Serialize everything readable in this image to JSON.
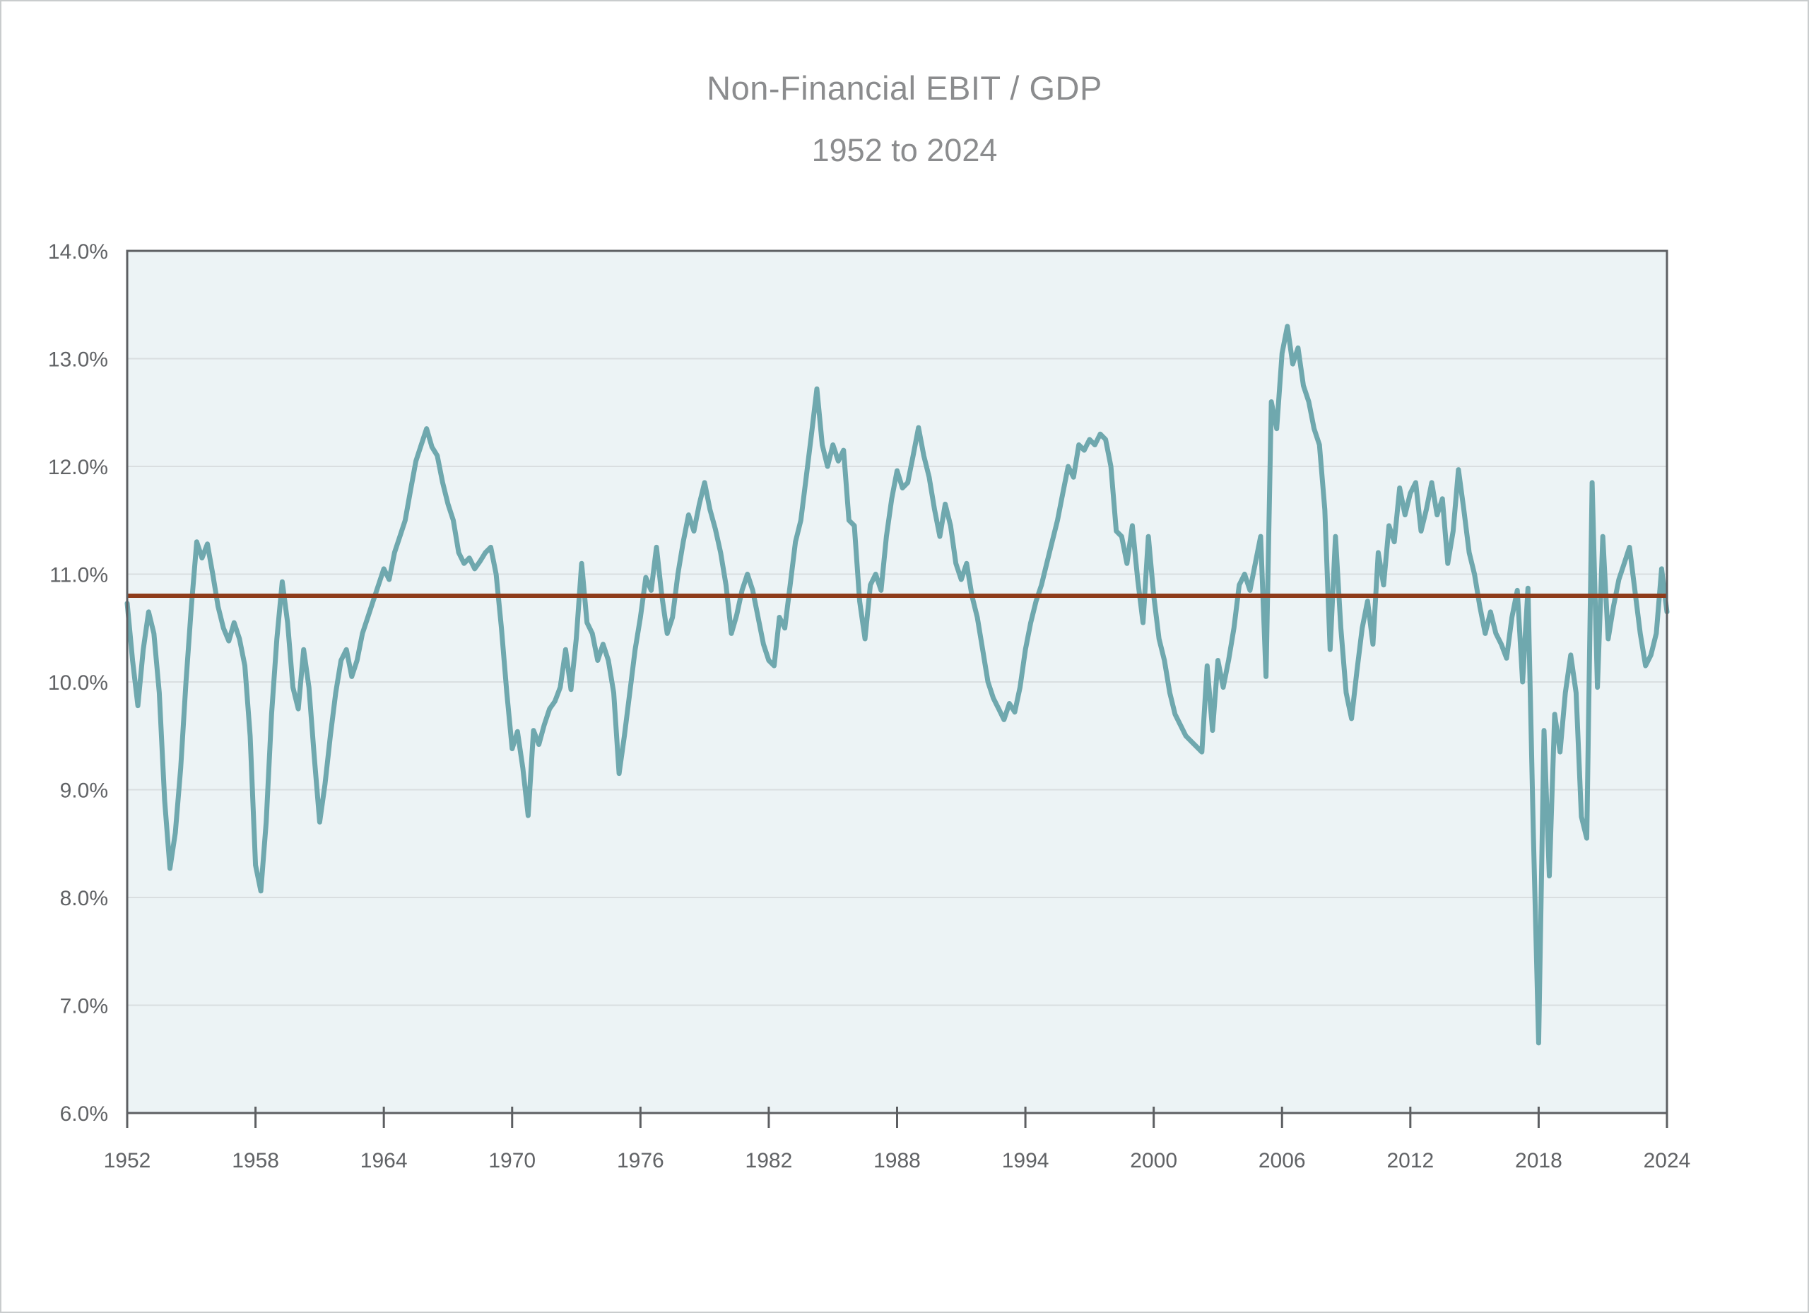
{
  "chart_data": {
    "type": "line",
    "title": "Non-Financial EBIT / GDP",
    "subtitle": "1952 to 2024",
    "xlabel": "",
    "ylabel": "",
    "xlim": [
      1952,
      2024
    ],
    "ylim": [
      6,
      14
    ],
    "grid": true,
    "legend_position": "none",
    "plot_bg_color": "#ECF3F5",
    "grid_color": "#d9dee0",
    "frame_color": "#5d5f62",
    "label_color": "#616366",
    "title_color": "#8b8c8e",
    "y_ticks": [
      {
        "value": 6,
        "label": "6.0%"
      },
      {
        "value": 7,
        "label": "7.0%"
      },
      {
        "value": 8,
        "label": "8.0%"
      },
      {
        "value": 9,
        "label": "9.0%"
      },
      {
        "value": 10,
        "label": "10.0%"
      },
      {
        "value": 11,
        "label": "11.0%"
      },
      {
        "value": 12,
        "label": "12.0%"
      },
      {
        "value": 13,
        "label": "13.0%"
      },
      {
        "value": 14,
        "label": "14.0%"
      }
    ],
    "x_ticks": [
      {
        "value": 1952,
        "label": "1952"
      },
      {
        "value": 1958,
        "label": "1958"
      },
      {
        "value": 1964,
        "label": "1964"
      },
      {
        "value": 1970,
        "label": "1970"
      },
      {
        "value": 1976,
        "label": "1976"
      },
      {
        "value": 1982,
        "label": "1982"
      },
      {
        "value": 1988,
        "label": "1988"
      },
      {
        "value": 1994,
        "label": "1994"
      },
      {
        "value": 2000,
        "label": "2000"
      },
      {
        "value": 2006,
        "label": "2006"
      },
      {
        "value": 2012,
        "label": "2012"
      },
      {
        "value": 2018,
        "label": "2018"
      },
      {
        "value": 2024,
        "label": "2024"
      }
    ],
    "reference_line": {
      "value": 10.8,
      "color": "#8E3B1A"
    },
    "series": [
      {
        "name": "Non-Financial EBIT / GDP",
        "color": "#6FA8AE",
        "x_start": 1952.0,
        "x_step": 0.25,
        "values": [
          10.73,
          10.2,
          9.78,
          10.3,
          10.65,
          10.45,
          9.9,
          8.9,
          8.27,
          8.6,
          9.2,
          10.0,
          10.7,
          11.3,
          11.15,
          11.28,
          11.0,
          10.7,
          10.5,
          10.38,
          10.55,
          10.4,
          10.15,
          9.5,
          8.3,
          8.06,
          8.7,
          9.7,
          10.4,
          10.93,
          10.55,
          9.95,
          9.75,
          10.3,
          9.95,
          9.3,
          8.7,
          9.05,
          9.5,
          9.9,
          10.2,
          10.3,
          10.05,
          10.2,
          10.45,
          10.6,
          10.75,
          10.9,
          11.05,
          10.95,
          11.2,
          11.35,
          11.5,
          11.78,
          12.05,
          12.2,
          12.35,
          12.18,
          12.1,
          11.85,
          11.65,
          11.5,
          11.2,
          11.1,
          11.15,
          11.05,
          11.12,
          11.2,
          11.25,
          11.0,
          10.5,
          9.9,
          9.38,
          9.54,
          9.2,
          8.76,
          9.55,
          9.42,
          9.6,
          9.75,
          9.82,
          9.95,
          10.3,
          9.93,
          10.4,
          11.1,
          10.55,
          10.45,
          10.2,
          10.35,
          10.2,
          9.9,
          9.15,
          9.5,
          9.9,
          10.3,
          10.6,
          10.97,
          10.85,
          11.25,
          10.8,
          10.45,
          10.6,
          11.0,
          11.3,
          11.55,
          11.4,
          11.65,
          11.85,
          11.6,
          11.42,
          11.2,
          10.9,
          10.45,
          10.62,
          10.85,
          11.0,
          10.85,
          10.6,
          10.35,
          10.2,
          10.15,
          10.6,
          10.5,
          10.9,
          11.3,
          11.5,
          11.9,
          12.3,
          12.72,
          12.2,
          12.0,
          12.2,
          12.05,
          12.15,
          11.5,
          11.45,
          10.75,
          10.4,
          10.9,
          11.0,
          10.85,
          11.35,
          11.7,
          11.96,
          11.8,
          11.85,
          12.1,
          12.36,
          12.1,
          11.9,
          11.6,
          11.35,
          11.65,
          11.45,
          11.1,
          10.95,
          11.1,
          10.8,
          10.6,
          10.3,
          10.0,
          9.85,
          9.75,
          9.65,
          9.8,
          9.72,
          9.95,
          10.3,
          10.55,
          10.75,
          10.9,
          11.1,
          11.3,
          11.5,
          11.75,
          12.0,
          11.9,
          12.2,
          12.15,
          12.25,
          12.2,
          12.3,
          12.25,
          12.0,
          11.4,
          11.35,
          11.1,
          11.45,
          10.95,
          10.55,
          11.35,
          10.8,
          10.4,
          10.2,
          9.9,
          9.7,
          9.6,
          9.5,
          9.45,
          9.4,
          9.35,
          10.15,
          9.55,
          10.2,
          9.95,
          10.2,
          10.5,
          10.9,
          11.0,
          10.85,
          11.1,
          11.35,
          10.05,
          12.6,
          12.35,
          13.05,
          13.3,
          12.95,
          13.1,
          12.75,
          12.6,
          12.35,
          12.2,
          11.6,
          10.3,
          11.35,
          10.5,
          9.9,
          9.66,
          10.1,
          10.5,
          10.75,
          10.35,
          11.2,
          10.9,
          11.45,
          11.3,
          11.8,
          11.55,
          11.75,
          11.85,
          11.4,
          11.6,
          11.85,
          11.55,
          11.7,
          11.1,
          11.4,
          11.97,
          11.6,
          11.2,
          11.0,
          10.7,
          10.45,
          10.65,
          10.45,
          10.35,
          10.22,
          10.6,
          10.85,
          10.0,
          10.87,
          8.6,
          6.65,
          9.55,
          8.2,
          9.7,
          9.35,
          9.9,
          10.25,
          9.9,
          8.75,
          8.55,
          11.85,
          9.95,
          11.35,
          10.4,
          10.7,
          10.95,
          11.1,
          11.25,
          10.85,
          10.45,
          10.15,
          10.25,
          10.45,
          11.05,
          10.65
        ]
      }
    ]
  }
}
